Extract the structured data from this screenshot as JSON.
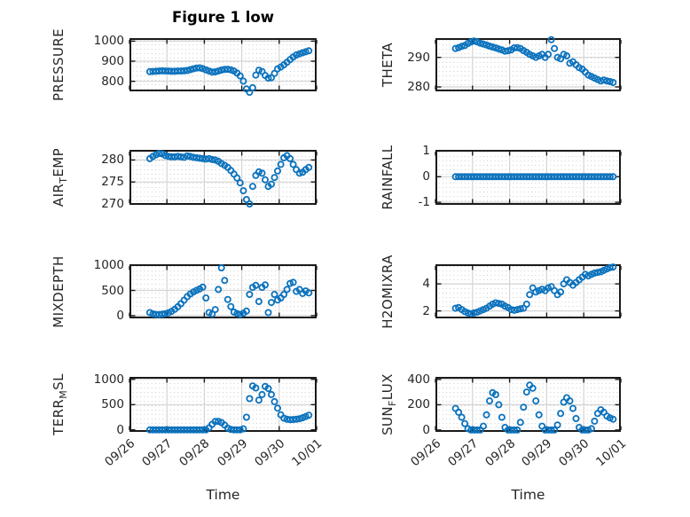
{
  "chart_data": {
    "type": "scatter",
    "title": "Figure 1 low",
    "xlabel": "Time",
    "layout": "4x2 grid of subplots, shared time axis, open-circle markers, major grid solid + minor grid dotted",
    "x_unit": "hours since 09/26 00:00",
    "x_range_hours": [
      0,
      120
    ],
    "x_ticks_hours": [
      0,
      24,
      48,
      72,
      96,
      120
    ],
    "x_tick_labels": [
      "09/26",
      "09/27",
      "09/28",
      "09/29",
      "09/30",
      "10/01"
    ],
    "marker": "o",
    "style": {
      "marker_color": "#0b72bd",
      "axis_color": "#1a1a1a",
      "major_grid_color": "#d4d4d4",
      "minor_grid_color": "#cdcdcd",
      "text_color": "#262626"
    },
    "x": [
      13,
      15,
      17,
      19,
      21,
      23,
      25,
      27,
      29,
      31,
      33,
      35,
      37,
      39,
      41,
      43,
      45,
      47,
      49,
      51,
      53,
      55,
      57,
      59,
      61,
      63,
      65,
      67,
      69,
      71,
      73,
      75,
      77,
      79,
      81,
      83,
      85,
      87,
      89,
      91,
      93,
      95,
      97,
      99,
      101,
      103,
      105,
      107,
      109,
      111,
      113,
      115
    ],
    "subplots": [
      {
        "name": "PRESSURE",
        "ylabel_parts": [
          {
            "t": "PRESSURE"
          }
        ],
        "yticks": [
          800,
          900,
          1000
        ],
        "ylim": [
          750,
          1015
        ],
        "values": [
          848,
          849,
          850,
          851,
          852,
          851,
          851,
          850,
          850,
          851,
          851,
          852,
          854,
          858,
          862,
          866,
          867,
          863,
          857,
          851,
          846,
          847,
          851,
          856,
          859,
          860,
          857,
          851,
          841,
          827,
          801,
          762,
          745,
          768,
          831,
          855,
          849,
          829,
          816,
          818,
          839,
          862,
          871,
          882,
          895,
          908,
          921,
          931,
          937,
          942,
          947,
          952
        ]
      },
      {
        "name": "THETA",
        "ylabel_parts": [
          {
            "t": "THETA"
          }
        ],
        "yticks": [
          280,
          290
        ],
        "ylim": [
          278.5,
          296.5
        ],
        "values": [
          293,
          293.3,
          293.7,
          294,
          294.7,
          295.2,
          295.5,
          295.2,
          294.8,
          294.5,
          294.2,
          293.8,
          293.5,
          293.2,
          292.8,
          292.5,
          292.1,
          292.2,
          292.5,
          293.2,
          293.3,
          293,
          292.3,
          291.7,
          291,
          290.5,
          290,
          290.5,
          291,
          290,
          291,
          296,
          293,
          290,
          289.5,
          291,
          290.5,
          288,
          288.5,
          287.5,
          286.5,
          286,
          285,
          284,
          283.5,
          283,
          282.5,
          282,
          282.3,
          282,
          281.8,
          281.5
        ]
      },
      {
        "name": "AIR_TEMP",
        "ylabel_parts": [
          {
            "t": "AIR"
          },
          {
            "t": "T",
            "sub": true
          },
          {
            "t": "EMP"
          }
        ],
        "yticks": [
          270,
          275,
          280
        ],
        "ylim": [
          269.8,
          282.3
        ],
        "values": [
          280.3,
          280.8,
          281.2,
          281.5,
          281.4,
          281,
          280.8,
          280.7,
          280.7,
          280.8,
          280.7,
          280.6,
          280.9,
          280.8,
          280.6,
          280.5,
          280.4,
          280.3,
          280.2,
          280.3,
          280.1,
          280,
          279.7,
          279.2,
          278.8,
          278.3,
          277.6,
          276.8,
          275.9,
          274.8,
          273,
          271,
          270,
          274,
          276.5,
          277.3,
          277,
          275.5,
          274,
          274.5,
          276,
          277.5,
          279,
          280.5,
          281,
          280.3,
          279,
          277.8,
          277,
          277.2,
          277.8,
          278.3
        ]
      },
      {
        "name": "RAINFALL",
        "ylabel_parts": [
          {
            "t": "RAINFALL"
          }
        ],
        "yticks": [
          -1,
          0,
          1
        ],
        "ylim": [
          -1.1,
          1.05
        ],
        "values": [
          0,
          0,
          0,
          0,
          0,
          0,
          0,
          0,
          0,
          0,
          0,
          0,
          0,
          0,
          0,
          0,
          0,
          0,
          0,
          0,
          0,
          0,
          0,
          0,
          0,
          0,
          0,
          0,
          0,
          0,
          0,
          0,
          0,
          0,
          0,
          0,
          0,
          0,
          0,
          0,
          0,
          0,
          0,
          0,
          0,
          0,
          0,
          0,
          0,
          0,
          0,
          0
        ]
      },
      {
        "name": "MIXDEPTH",
        "ylabel_parts": [
          {
            "t": "MIXDEPTH"
          }
        ],
        "yticks": [
          0,
          500,
          1000
        ],
        "ylim": [
          -55,
          1020
        ],
        "values": [
          60,
          35,
          22,
          20,
          28,
          38,
          55,
          85,
          125,
          175,
          235,
          305,
          375,
          430,
          470,
          500,
          530,
          565,
          350,
          60,
          30,
          120,
          520,
          950,
          700,
          320,
          180,
          70,
          40,
          25,
          45,
          90,
          420,
          560,
          600,
          280,
          560,
          610,
          60,
          260,
          420,
          310,
          350,
          420,
          520,
          640,
          660,
          480,
          520,
          440,
          490,
          450
        ]
      },
      {
        "name": "H2OMIXRA",
        "ylabel_parts": [
          {
            "t": "H2OMIXRA"
          }
        ],
        "yticks": [
          2,
          4
        ],
        "ylim": [
          1.45,
          5.45
        ],
        "values": [
          2.2,
          2.25,
          2.1,
          1.95,
          1.85,
          1.8,
          1.85,
          1.9,
          2,
          2.1,
          2.2,
          2.35,
          2.5,
          2.6,
          2.55,
          2.5,
          2.35,
          2.25,
          2.1,
          2.05,
          2.1,
          2.15,
          2.2,
          2.5,
          3.2,
          3.7,
          3.4,
          3.5,
          3.6,
          3.5,
          3.7,
          3.8,
          3.5,
          3.2,
          3.4,
          4,
          4.3,
          4.1,
          3.9,
          4.1,
          4.3,
          4.5,
          4.7,
          4.6,
          4.7,
          4.8,
          4.85,
          4.9,
          5,
          5.1,
          5.2,
          5.25
        ]
      },
      {
        "name": "TERR_MSL",
        "ylabel_parts": [
          {
            "t": "TERR"
          },
          {
            "t": "M",
            "sub": true
          },
          {
            "t": "SL"
          }
        ],
        "yticks": [
          0,
          500,
          1000
        ],
        "ylim": [
          -40,
          1050
        ],
        "values": [
          0,
          0,
          0,
          0,
          0,
          0,
          0,
          0,
          0,
          0,
          0,
          0,
          0,
          0,
          0,
          0,
          0,
          0,
          0,
          40,
          110,
          165,
          170,
          145,
          95,
          35,
          8,
          0,
          0,
          0,
          20,
          250,
          620,
          870,
          830,
          590,
          700,
          860,
          820,
          700,
          560,
          430,
          300,
          230,
          210,
          200,
          205,
          210,
          220,
          240,
          265,
          290
        ]
      },
      {
        "name": "SUN_FLUX",
        "ylabel_parts": [
          {
            "t": "SUN"
          },
          {
            "t": "F",
            "sub": true
          },
          {
            "t": "LUX"
          }
        ],
        "yticks": [
          0,
          200,
          400
        ],
        "ylim": [
          -15,
          420
        ],
        "values": [
          170,
          140,
          100,
          50,
          10,
          0,
          0,
          0,
          0,
          30,
          120,
          230,
          295,
          280,
          200,
          100,
          20,
          0,
          0,
          0,
          0,
          60,
          180,
          300,
          355,
          330,
          230,
          120,
          30,
          0,
          0,
          0,
          0,
          40,
          130,
          220,
          255,
          230,
          170,
          90,
          20,
          0,
          0,
          0,
          10,
          70,
          130,
          160,
          140,
          110,
          95,
          85
        ]
      }
    ]
  }
}
